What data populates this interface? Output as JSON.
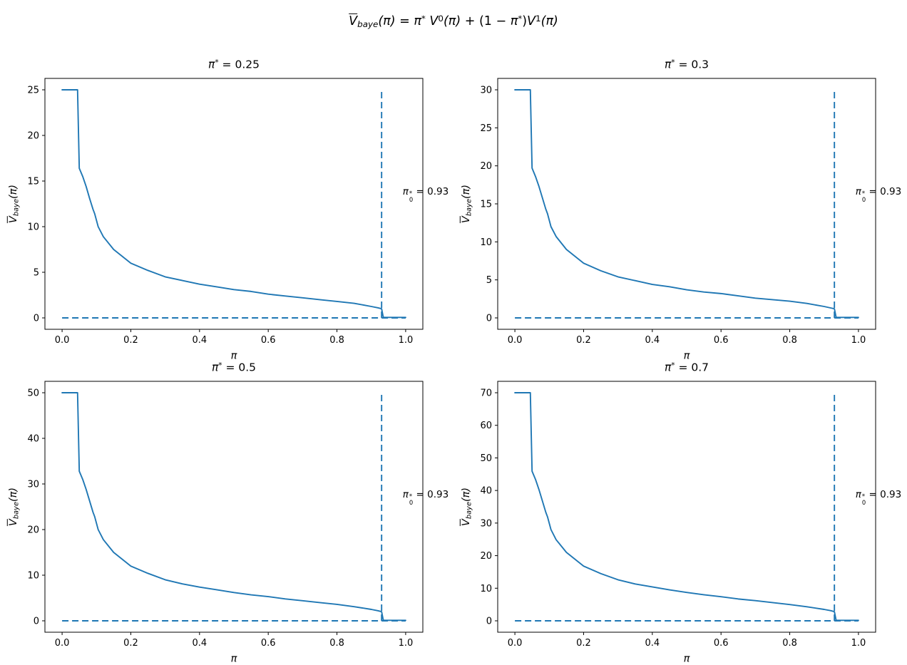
{
  "figure": {
    "suptitle_text": "V̄_baye(π) = π* V⁰(π) + (1 − π*)V¹(π)",
    "suptitle_parts": [
      {
        "k": "ov",
        "t": "V"
      },
      {
        "k": "sub",
        "t": "baye"
      },
      {
        "k": "i",
        "t": "(π)"
      },
      {
        "k": "n",
        "t": " = "
      },
      {
        "k": "i",
        "t": "π"
      },
      {
        "k": "sup",
        "t": "*"
      },
      {
        "k": "i",
        "t": " V"
      },
      {
        "k": "sup",
        "t": "0"
      },
      {
        "k": "i",
        "t": "(π)"
      },
      {
        "k": "n",
        "t": " + (1 − "
      },
      {
        "k": "i",
        "t": "π"
      },
      {
        "k": "sup",
        "t": "*"
      },
      {
        "k": "n",
        "t": ")"
      },
      {
        "k": "i",
        "t": "V"
      },
      {
        "k": "sup",
        "t": "1"
      },
      {
        "k": "i",
        "t": "(π)"
      }
    ],
    "line_color": "#1f77b4",
    "axis_color": "#000000",
    "background": "#ffffff"
  },
  "chart_data": {
    "type": "line",
    "layout": "2x2 grid",
    "charts": [
      {
        "title_text": "π* = 0.25",
        "title_parts": [
          {
            "k": "i",
            "t": "π"
          },
          {
            "k": "sup",
            "t": "*"
          },
          {
            "k": "n",
            "t": " = 0.25"
          }
        ],
        "pi_star": 0.25,
        "xlabel_text": "π",
        "xlabel_parts": [
          {
            "k": "i",
            "t": "π"
          }
        ],
        "ylabel_text": "V̄_baye(π)",
        "ylabel_parts": [
          {
            "k": "ov",
            "t": "V"
          },
          {
            "k": "sub",
            "t": "baye"
          },
          {
            "k": "i",
            "t": "(π)"
          }
        ],
        "xlim": [
          -0.05,
          1.05
        ],
        "ylim": [
          -1.25,
          26.25
        ],
        "xtick_labels": [
          "0.0",
          "0.2",
          "0.4",
          "0.6",
          "0.8",
          "1.0"
        ],
        "xtick_values": [
          0,
          0.2,
          0.4,
          0.6,
          0.8,
          1.0
        ],
        "ytick_values": [
          0,
          5,
          10,
          15,
          20,
          25
        ],
        "curve": {
          "x": [
            0,
            0.045,
            0.05,
            0.06,
            0.07,
            0.08,
            0.09,
            0.095,
            0.105,
            0.12,
            0.15,
            0.2,
            0.25,
            0.3,
            0.35,
            0.4,
            0.45,
            0.5,
            0.55,
            0.6,
            0.65,
            0.7,
            0.75,
            0.8,
            0.85,
            0.9,
            0.92,
            0.93,
            0.935,
            1.0
          ],
          "y": [
            25,
            25,
            16.4,
            15.5,
            14.4,
            13.1,
            11.9,
            11.4,
            10,
            8.9,
            7.5,
            6,
            5.2,
            4.5,
            4.1,
            3.7,
            3.4,
            3.1,
            2.9,
            2.6,
            2.4,
            2.2,
            2,
            1.8,
            1.6,
            1.25,
            1.1,
            1,
            0.05,
            0.05
          ]
        },
        "vline": {
          "x": 0.93,
          "y0": 0,
          "y1": 25,
          "style": "dashed"
        },
        "hline": {
          "y": 0,
          "x0": 0,
          "x1": 1.0,
          "style": "dashed"
        },
        "annotation_text": "π₀* = 0.93",
        "annotation_parts": [
          {
            "k": "i",
            "t": "π"
          },
          {
            "k": "ss",
            "sup": "*",
            "sub": "0"
          },
          {
            "k": "n",
            "t": " = 0.93"
          }
        ]
      },
      {
        "title_text": "π* = 0.3",
        "title_parts": [
          {
            "k": "i",
            "t": "π"
          },
          {
            "k": "sup",
            "t": "*"
          },
          {
            "k": "n",
            "t": " = 0.3"
          }
        ],
        "pi_star": 0.3,
        "xlabel_text": "π",
        "xlabel_parts": [
          {
            "k": "i",
            "t": "π"
          }
        ],
        "ylabel_text": "V̄_baye(π)",
        "ylabel_parts": [
          {
            "k": "ov",
            "t": "V"
          },
          {
            "k": "sub",
            "t": "baye"
          },
          {
            "k": "i",
            "t": "(π)"
          }
        ],
        "xlim": [
          -0.05,
          1.05
        ],
        "ylim": [
          -1.5,
          31.5
        ],
        "xtick_labels": [
          "0.0",
          "0.2",
          "0.4",
          "0.6",
          "0.8",
          "1.0"
        ],
        "xtick_values": [
          0,
          0.2,
          0.4,
          0.6,
          0.8,
          1.0
        ],
        "ytick_values": [
          0,
          5,
          10,
          15,
          20,
          25,
          30
        ],
        "curve": {
          "x": [
            0,
            0.045,
            0.05,
            0.06,
            0.07,
            0.08,
            0.09,
            0.095,
            0.105,
            0.12,
            0.15,
            0.2,
            0.25,
            0.3,
            0.35,
            0.4,
            0.45,
            0.5,
            0.55,
            0.6,
            0.65,
            0.7,
            0.75,
            0.8,
            0.85,
            0.9,
            0.92,
            0.93,
            0.935,
            1.0
          ],
          "y": [
            30,
            30,
            19.7,
            18.6,
            17.3,
            15.8,
            14.3,
            13.7,
            12,
            10.7,
            9,
            7.2,
            6.2,
            5.4,
            4.9,
            4.4,
            4.1,
            3.7,
            3.4,
            3.2,
            2.9,
            2.6,
            2.4,
            2.2,
            1.9,
            1.5,
            1.3,
            1.2,
            0.06,
            0.06
          ]
        },
        "vline": {
          "x": 0.93,
          "y0": 0,
          "y1": 30,
          "style": "dashed"
        },
        "hline": {
          "y": 0,
          "x0": 0,
          "x1": 1.0,
          "style": "dashed"
        },
        "annotation_text": "π₀* = 0.93",
        "annotation_parts": [
          {
            "k": "i",
            "t": "π"
          },
          {
            "k": "ss",
            "sup": "*",
            "sub": "0"
          },
          {
            "k": "n",
            "t": " = 0.93"
          }
        ]
      },
      {
        "title_text": "π* = 0.5",
        "title_parts": [
          {
            "k": "i",
            "t": "π"
          },
          {
            "k": "sup",
            "t": "*"
          },
          {
            "k": "n",
            "t": " = 0.5"
          }
        ],
        "pi_star": 0.5,
        "xlabel_text": "π",
        "xlabel_parts": [
          {
            "k": "i",
            "t": "π"
          }
        ],
        "ylabel_text": "V̄_baye(π)",
        "ylabel_parts": [
          {
            "k": "ov",
            "t": "V"
          },
          {
            "k": "sub",
            "t": "baye"
          },
          {
            "k": "i",
            "t": "(π)"
          }
        ],
        "xlim": [
          -0.05,
          1.05
        ],
        "ylim": [
          -2.5,
          52.5
        ],
        "xtick_labels": [
          "0.0",
          "0.2",
          "0.4",
          "0.6",
          "0.8",
          "1.0"
        ],
        "xtick_values": [
          0,
          0.2,
          0.4,
          0.6,
          0.8,
          1.0
        ],
        "ytick_values": [
          0,
          10,
          20,
          30,
          40,
          50
        ],
        "curve": {
          "x": [
            0,
            0.045,
            0.05,
            0.06,
            0.07,
            0.08,
            0.09,
            0.095,
            0.105,
            0.12,
            0.15,
            0.2,
            0.25,
            0.3,
            0.35,
            0.4,
            0.45,
            0.5,
            0.55,
            0.6,
            0.65,
            0.7,
            0.75,
            0.8,
            0.85,
            0.9,
            0.92,
            0.93,
            0.935,
            1.0
          ],
          "y": [
            50,
            50,
            32.8,
            31,
            28.8,
            26.3,
            23.8,
            22.8,
            20,
            17.8,
            15,
            12,
            10.4,
            9,
            8.1,
            7.4,
            6.8,
            6.2,
            5.7,
            5.3,
            4.8,
            4.4,
            4,
            3.6,
            3.1,
            2.5,
            2.2,
            2,
            0.1,
            0.1
          ]
        },
        "vline": {
          "x": 0.93,
          "y0": 0,
          "y1": 50,
          "style": "dashed"
        },
        "hline": {
          "y": 0,
          "x0": 0,
          "x1": 1.0,
          "style": "dashed"
        },
        "annotation_text": "π₀* = 0.93",
        "annotation_parts": [
          {
            "k": "i",
            "t": "π"
          },
          {
            "k": "ss",
            "sup": "*",
            "sub": "0"
          },
          {
            "k": "n",
            "t": " = 0.93"
          }
        ]
      },
      {
        "title_text": "π* = 0.7",
        "title_parts": [
          {
            "k": "i",
            "t": "π"
          },
          {
            "k": "sup",
            "t": "*"
          },
          {
            "k": "n",
            "t": " = 0.7"
          }
        ],
        "pi_star": 0.7,
        "xlabel_text": "π",
        "xlabel_parts": [
          {
            "k": "i",
            "t": "π"
          }
        ],
        "ylabel_text": "V̄_baye(π)",
        "ylabel_parts": [
          {
            "k": "ov",
            "t": "V"
          },
          {
            "k": "sub",
            "t": "baye"
          },
          {
            "k": "i",
            "t": "(π)"
          }
        ],
        "xlim": [
          -0.05,
          1.05
        ],
        "ylim": [
          -3.5,
          73.5
        ],
        "xtick_labels": [
          "0.0",
          "0.2",
          "0.4",
          "0.6",
          "0.8",
          "1.0"
        ],
        "xtick_values": [
          0,
          0.2,
          0.4,
          0.6,
          0.8,
          1.0
        ],
        "ytick_values": [
          0,
          10,
          20,
          30,
          40,
          50,
          60,
          70
        ],
        "curve": {
          "x": [
            0,
            0.045,
            0.05,
            0.06,
            0.07,
            0.08,
            0.09,
            0.095,
            0.105,
            0.12,
            0.15,
            0.2,
            0.25,
            0.3,
            0.35,
            0.4,
            0.45,
            0.5,
            0.55,
            0.6,
            0.65,
            0.7,
            0.75,
            0.8,
            0.85,
            0.9,
            0.92,
            0.93,
            0.935,
            1.0
          ],
          "y": [
            70,
            70,
            45.9,
            43.4,
            40.3,
            36.8,
            33.3,
            31.9,
            28,
            24.9,
            21,
            16.8,
            14.5,
            12.6,
            11.3,
            10.4,
            9.5,
            8.7,
            8,
            7.4,
            6.7,
            6.2,
            5.6,
            5,
            4.3,
            3.5,
            3.1,
            2.8,
            0.14,
            0.14
          ]
        },
        "vline": {
          "x": 0.93,
          "y0": 0,
          "y1": 70,
          "style": "dashed"
        },
        "hline": {
          "y": 0,
          "x0": 0,
          "x1": 1.0,
          "style": "dashed"
        },
        "annotation_text": "π₀* = 0.93",
        "annotation_parts": [
          {
            "k": "i",
            "t": "π"
          },
          {
            "k": "ss",
            "sup": "*",
            "sub": "0"
          },
          {
            "k": "n",
            "t": " = 0.93"
          }
        ]
      }
    ]
  }
}
